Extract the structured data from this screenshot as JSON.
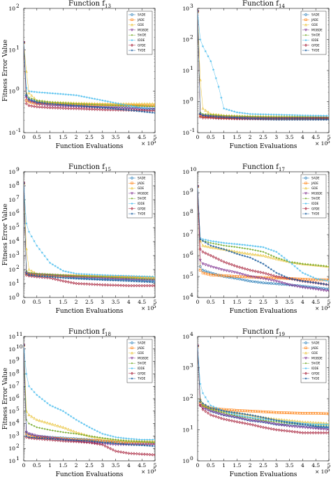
{
  "colors": {
    "SADE": "#1f77b4",
    "JADE": "#ff7f0e",
    "GDE": "#e8c030",
    "MGBDE": "#7e2f8e",
    "ShiDE": "#77ac30",
    "IDDE": "#4dbeee",
    "GPDE": "#a2142f",
    "TVDE": "#1f5fa0"
  },
  "series_names": [
    "SADE",
    "JADE",
    "GDE",
    "MGBDE",
    "ShiDE",
    "IDDE",
    "GPDE",
    "TVDE"
  ],
  "markers": [
    "circle",
    "square",
    "triangle",
    "triangle-down",
    "diamond-small",
    "star",
    "diamond",
    "star"
  ],
  "common": {
    "xlabel": "Function Evaluations",
    "ylabel": "Fitness Error Value",
    "xticks": [
      "0",
      "0.5",
      "1",
      "1.5",
      "2",
      "2.5",
      "3",
      "3.5",
      "4",
      "4.5",
      "5"
    ],
    "x_multiplier_base": "× 10",
    "x_multiplier_exp": "5"
  },
  "chart_data": [
    {
      "type": "line",
      "title_main": "Function f",
      "title_sub": "13",
      "ylabel": "Fitness Error Value",
      "xlabel": "Function Evaluations",
      "xlim": [
        0,
        5
      ],
      "ylim_exp": [
        -1,
        2
      ],
      "yscale": "log",
      "show_legend": true,
      "x": [
        0,
        0.1,
        0.2,
        0.5,
        1,
        2,
        3,
        4,
        5
      ],
      "series": [
        {
          "name": "SADE",
          "values": [
            15,
            0.8,
            0.6,
            0.55,
            0.5,
            0.45,
            0.42,
            0.4,
            0.38
          ]
        },
        {
          "name": "JADE",
          "values": [
            15,
            0.6,
            0.55,
            0.5,
            0.5,
            0.48,
            0.47,
            0.46,
            0.45
          ]
        },
        {
          "name": "GDE",
          "values": [
            15,
            3,
            0.9,
            0.6,
            0.55,
            0.52,
            0.5,
            0.5,
            0.5
          ]
        },
        {
          "name": "MGBDE",
          "values": [
            15,
            0.7,
            0.6,
            0.5,
            0.45,
            0.42,
            0.4,
            0.38,
            0.36
          ]
        },
        {
          "name": "ShiDE",
          "values": [
            15,
            0.9,
            0.7,
            0.6,
            0.55,
            0.5,
            0.47,
            0.45,
            0.43
          ]
        },
        {
          "name": "IDDE",
          "values": [
            15,
            1.2,
            1.0,
            0.95,
            0.9,
            0.8,
            0.6,
            0.45,
            0.35
          ]
        },
        {
          "name": "GPDE",
          "values": [
            15,
            0.5,
            0.45,
            0.42,
            0.4,
            0.38,
            0.36,
            0.35,
            0.34
          ]
        },
        {
          "name": "TVDE",
          "values": [
            15,
            0.8,
            0.65,
            0.55,
            0.5,
            0.45,
            0.4,
            0.35,
            0.3
          ]
        }
      ]
    },
    {
      "type": "line",
      "title_main": "Function f",
      "title_sub": "14",
      "ylabel": "",
      "xlabel": "Function Evaluations",
      "xlim": [
        0,
        5
      ],
      "ylim_exp": [
        -1,
        3
      ],
      "yscale": "log",
      "show_legend": true,
      "x": [
        0,
        0.1,
        0.2,
        0.5,
        0.8,
        1,
        1.5,
        2,
        3,
        4,
        5
      ],
      "series": [
        {
          "name": "SADE",
          "values": [
            800,
            0.4,
            0.35,
            0.32,
            0.3,
            0.3,
            0.29,
            0.28,
            0.27,
            0.27,
            0.27
          ]
        },
        {
          "name": "JADE",
          "values": [
            800,
            0.35,
            0.33,
            0.32,
            0.31,
            0.3,
            0.3,
            0.3,
            0.29,
            0.29,
            0.29
          ]
        },
        {
          "name": "GDE",
          "values": [
            800,
            5,
            0.6,
            0.4,
            0.38,
            0.36,
            0.35,
            0.34,
            0.33,
            0.33,
            0.32
          ]
        },
        {
          "name": "MGBDE",
          "values": [
            800,
            0.38,
            0.35,
            0.33,
            0.32,
            0.31,
            0.3,
            0.3,
            0.3,
            0.3,
            0.3
          ]
        },
        {
          "name": "ShiDE",
          "values": [
            800,
            0.45,
            0.4,
            0.38,
            0.36,
            0.35,
            0.34,
            0.33,
            0.32,
            0.32,
            0.31
          ]
        },
        {
          "name": "IDDE",
          "values": [
            800,
            100,
            60,
            20,
            3,
            0.6,
            0.45,
            0.4,
            0.38,
            0.36,
            0.35
          ]
        },
        {
          "name": "GPDE",
          "values": [
            800,
            0.32,
            0.3,
            0.3,
            0.29,
            0.29,
            0.28,
            0.28,
            0.28,
            0.28,
            0.28
          ]
        },
        {
          "name": "TVDE",
          "values": [
            800,
            0.4,
            0.36,
            0.34,
            0.32,
            0.31,
            0.3,
            0.29,
            0.28,
            0.28,
            0.27
          ]
        }
      ]
    },
    {
      "type": "line",
      "title_main": "Function f",
      "title_sub": "15",
      "ylabel": "Fitness Error Value",
      "xlabel": "Function Evaluations",
      "xlim": [
        0,
        5
      ],
      "ylim_exp": [
        0,
        9
      ],
      "yscale": "log",
      "show_legend": true,
      "x": [
        0,
        0.1,
        0.2,
        0.5,
        1,
        1.5,
        2,
        3,
        4,
        5
      ],
      "series": [
        {
          "name": "SADE",
          "values": [
            150000000,
            60,
            50,
            40,
            35,
            30,
            25,
            20,
            18,
            15
          ]
        },
        {
          "name": "JADE",
          "values": [
            150000000,
            50,
            45,
            40,
            38,
            36,
            34,
            30,
            28,
            25
          ]
        },
        {
          "name": "GDE",
          "values": [
            150000000,
            3000,
            100,
            50,
            45,
            40,
            38,
            35,
            30,
            30
          ]
        },
        {
          "name": "MGBDE",
          "values": [
            150000000,
            55,
            50,
            45,
            40,
            35,
            30,
            25,
            20,
            18
          ]
        },
        {
          "name": "ShiDE",
          "values": [
            150000000,
            80,
            60,
            50,
            45,
            40,
            35,
            30,
            25,
            20
          ]
        },
        {
          "name": "IDDE",
          "values": [
            150000000,
            200000,
            50000,
            5000,
            300,
            80,
            50,
            40,
            35,
            30
          ]
        },
        {
          "name": "GPDE",
          "values": [
            150000000,
            40,
            35,
            30,
            25,
            15,
            10,
            8,
            7,
            7
          ]
        },
        {
          "name": "TVDE",
          "values": [
            150000000,
            50,
            40,
            35,
            30,
            25,
            22,
            18,
            15,
            12
          ]
        }
      ]
    },
    {
      "type": "line",
      "title_main": "Function f",
      "title_sub": "17",
      "ylabel": "",
      "xlabel": "Function Evaluations",
      "xlim": [
        0,
        5
      ],
      "ylim_exp": [
        4,
        10
      ],
      "yscale": "log",
      "show_legend": true,
      "x": [
        0,
        0.1,
        0.2,
        0.5,
        1,
        1.5,
        2,
        2.5,
        3,
        3.5,
        4,
        4.5,
        5
      ],
      "series": [
        {
          "name": "SADE",
          "values": [
            2000000000,
            300000,
            200000,
            150000,
            100000,
            80000,
            60000,
            50000,
            45000,
            40000,
            35000,
            30000,
            25000
          ]
        },
        {
          "name": "JADE",
          "values": [
            2000000000,
            200000,
            150000,
            120000,
            110000,
            100000,
            95000,
            90000,
            85000,
            80000,
            75000,
            70000,
            70000
          ]
        },
        {
          "name": "GDE",
          "values": [
            2000000000,
            5000000,
            3000000,
            2500000,
            2000000,
            1500000,
            1200000,
            1000000,
            700000,
            500000,
            400000,
            350000,
            300000
          ]
        },
        {
          "name": "MGBDE",
          "values": [
            2000000000,
            600000,
            400000,
            300000,
            200000,
            150000,
            100000,
            80000,
            60000,
            40000,
            30000,
            25000,
            20000
          ]
        },
        {
          "name": "ShiDE",
          "values": [
            2000000000,
            6000000,
            5000000,
            4000000,
            3000000,
            2500000,
            2000000,
            1500000,
            800000,
            500000,
            400000,
            350000,
            300000
          ]
        },
        {
          "name": "IDDE",
          "values": [
            2000000000,
            7000000,
            6000000,
            5000000,
            4000000,
            3500000,
            3000000,
            2500000,
            1500000,
            500000,
            150000,
            80000,
            60000
          ]
        },
        {
          "name": "GPDE",
          "values": [
            2000000000,
            2000000,
            1500000,
            1000000,
            500000,
            300000,
            200000,
            150000,
            100000,
            80000,
            60000,
            50000,
            40000
          ]
        },
        {
          "name": "TVDE",
          "values": [
            2000000000,
            6000000,
            5000000,
            3000000,
            2000000,
            1200000,
            800000,
            400000,
            150000,
            80000,
            60000,
            50000,
            40000
          ]
        }
      ]
    },
    {
      "type": "line",
      "title_main": "Function f",
      "title_sub": "18",
      "ylabel": "Fitness Error Value",
      "xlabel": "Function Evaluations",
      "xlim": [
        0,
        5
      ],
      "ylim_exp": [
        1,
        11
      ],
      "yscale": "log",
      "show_legend": true,
      "x": [
        0,
        0.1,
        0.2,
        0.5,
        1,
        1.5,
        2,
        2.5,
        3,
        3.5,
        4,
        4.5,
        5
      ],
      "series": [
        {
          "name": "SADE",
          "values": [
            20000000000,
            2000,
            1500,
            1000,
            800,
            700,
            600,
            500,
            400,
            350,
            300,
            300,
            300
          ]
        },
        {
          "name": "JADE",
          "values": [
            20000000000,
            1500,
            1000,
            800,
            700,
            600,
            500,
            450,
            400,
            300,
            250,
            250,
            250
          ]
        },
        {
          "name": "GDE",
          "values": [
            20000000000,
            100000,
            50000,
            20000,
            10000,
            5000,
            2000,
            1000,
            600,
            500,
            400,
            400,
            400
          ]
        },
        {
          "name": "MGBDE",
          "values": [
            20000000000,
            2000,
            1500,
            1000,
            700,
            500,
            400,
            300,
            250,
            200,
            200,
            200,
            200
          ]
        },
        {
          "name": "ShiDE",
          "values": [
            20000000000,
            20000,
            10000,
            5000,
            3000,
            2000,
            1500,
            1000,
            700,
            500,
            400,
            350,
            300
          ]
        },
        {
          "name": "IDDE",
          "values": [
            20000000000,
            100000000,
            10000000,
            2000000,
            300000,
            100000,
            20000,
            5000,
            1500,
            800,
            600,
            500,
            500
          ]
        },
        {
          "name": "GPDE",
          "values": [
            20000000000,
            800,
            700,
            600,
            500,
            400,
            350,
            300,
            200,
            60,
            40,
            35,
            30
          ]
        },
        {
          "name": "TVDE",
          "values": [
            20000000000,
            1000,
            800,
            700,
            600,
            500,
            450,
            400,
            300,
            250,
            200,
            180,
            150
          ]
        }
      ]
    },
    {
      "type": "line",
      "title_main": "Function f",
      "title_sub": "19",
      "ylabel": "",
      "xlabel": "Function Evaluations",
      "xlim": [
        0,
        5
      ],
      "ylim_exp": [
        0,
        4
      ],
      "yscale": "log",
      "show_legend": true,
      "x": [
        0,
        0.1,
        0.2,
        0.5,
        1,
        1.5,
        2,
        2.5,
        3,
        3.5,
        4,
        4.5,
        5
      ],
      "series": [
        {
          "name": "SADE",
          "values": [
            5000,
            80,
            60,
            40,
            30,
            25,
            20,
            18,
            15,
            14,
            13,
            12,
            12
          ]
        },
        {
          "name": "JADE",
          "values": [
            5000,
            70,
            60,
            50,
            45,
            42,
            40,
            38,
            36,
            35,
            34,
            34,
            33
          ]
        },
        {
          "name": "GDE",
          "values": [
            5000,
            100,
            70,
            50,
            40,
            35,
            30,
            25,
            22,
            20,
            18,
            17,
            16
          ]
        },
        {
          "name": "MGBDE",
          "values": [
            5000,
            60,
            50,
            40,
            30,
            25,
            20,
            18,
            15,
            13,
            12,
            11,
            10
          ]
        },
        {
          "name": "ShiDE",
          "values": [
            5000,
            80,
            60,
            45,
            35,
            28,
            24,
            20,
            18,
            16,
            15,
            14,
            14
          ]
        },
        {
          "name": "IDDE",
          "values": [
            5000,
            300,
            150,
            60,
            40,
            30,
            25,
            22,
            20,
            18,
            16,
            15,
            15
          ]
        },
        {
          "name": "GPDE",
          "values": [
            5000,
            60,
            45,
            30,
            22,
            18,
            15,
            12,
            10,
            9,
            8,
            8,
            8
          ]
        },
        {
          "name": "TVDE",
          "values": [
            5000,
            90,
            70,
            50,
            40,
            35,
            30,
            25,
            20,
            17,
            15,
            13,
            12
          ]
        }
      ]
    }
  ]
}
